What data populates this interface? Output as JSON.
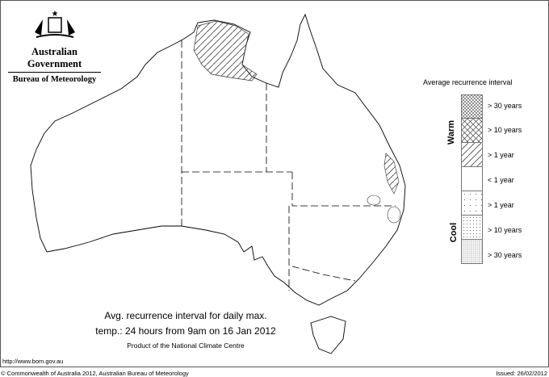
{
  "header": {
    "org": "Australian Government",
    "agency": "Bureau of Meteorology"
  },
  "legend": {
    "title": "Average recurrence interval",
    "warm_label": "Warm",
    "cool_label": "Cool",
    "items": [
      {
        "label": "> 30 years",
        "pattern": "dense-crosshatch"
      },
      {
        "label": "> 10 years",
        "pattern": "crosshatch"
      },
      {
        "label": "> 1 year",
        "pattern": "diagonal-hatch"
      },
      {
        "label": "< 1 year",
        "pattern": "blank"
      },
      {
        "label": "> 1 year",
        "pattern": "sparse-dots"
      },
      {
        "label": "> 10 years",
        "pattern": "dots"
      },
      {
        "label": "> 30 years",
        "pattern": "dense-dots"
      }
    ]
  },
  "caption": {
    "line1": "Avg. recurrence interval for daily max.",
    "line2": "temp.: 24 hours from 9am on 16 Jan 2012",
    "line3": "Product of the National Climate Centre"
  },
  "footer": {
    "url": "http://www.bom.gov.au",
    "copyright": "© Commonwealth of Australia 2012, Australian Bureau of Meteorology",
    "issued": "Issued: 26/02/2012"
  }
}
